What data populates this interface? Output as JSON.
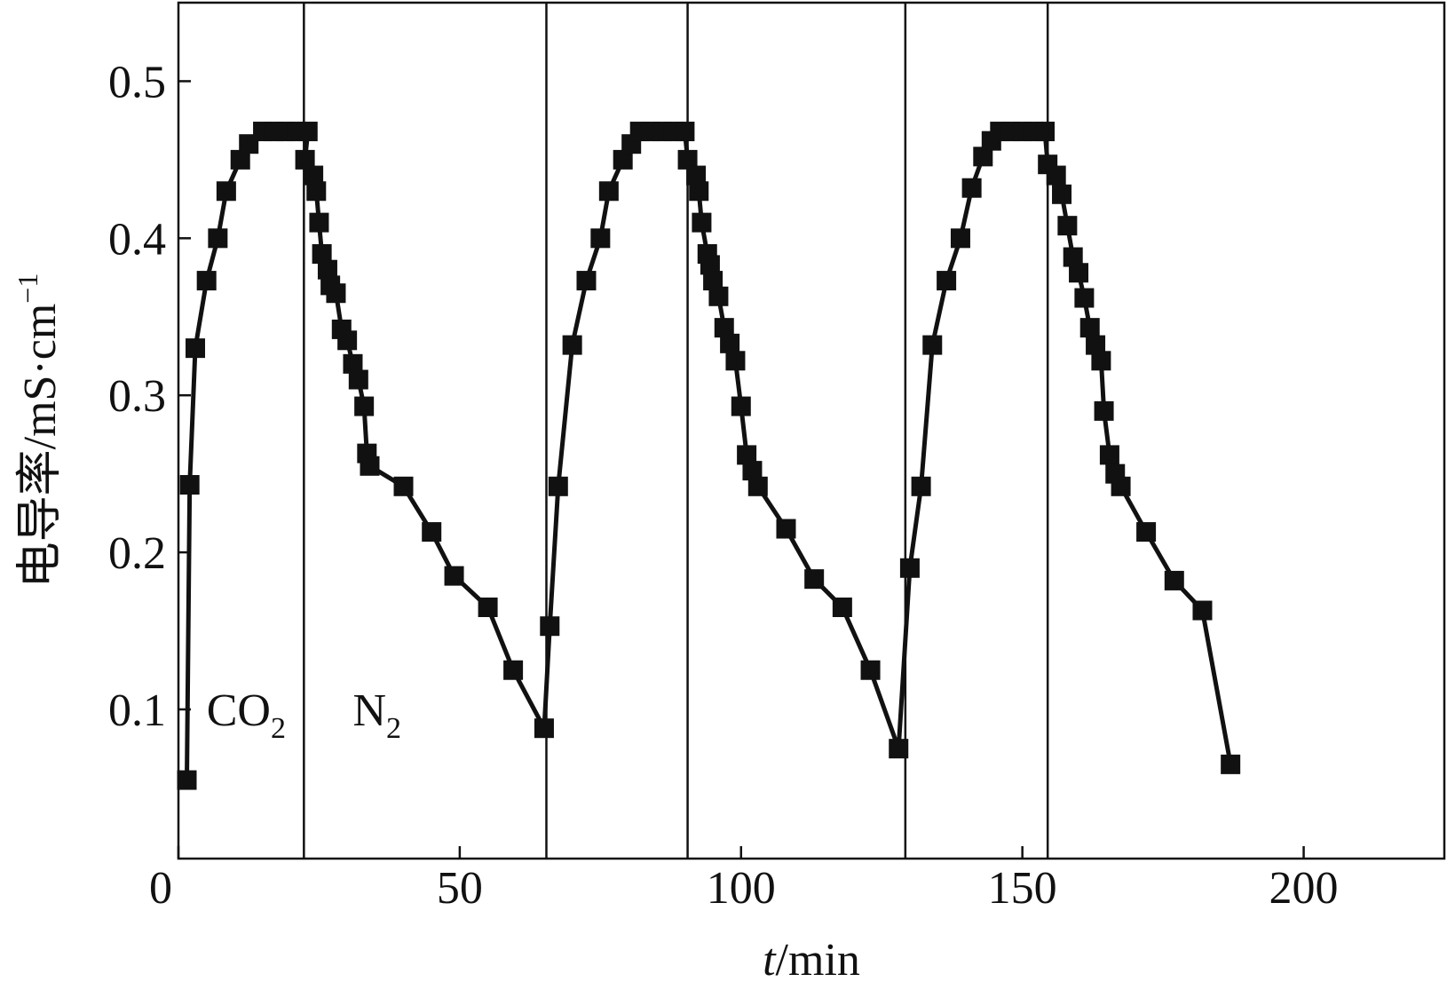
{
  "chart_data": {
    "type": "line",
    "x_label": {
      "main": "t",
      "rest": "/min"
    },
    "y_label": {
      "main": "电导率/mS·cm",
      "sup": "−1"
    },
    "annotations": [
      {
        "text": "CO",
        "sub": "2",
        "x": 5,
        "y": 0.1
      },
      {
        "text": "N",
        "sub": "2",
        "x": 31,
        "y": 0.1
      }
    ],
    "vlines": [
      22.3,
      65.4,
      90.5,
      129.2,
      154.5
    ],
    "color": "#111111",
    "xlim": [
      0,
      225
    ],
    "ylim": [
      0.005,
      0.55
    ],
    "xticks": [
      0,
      50,
      100,
      150,
      200
    ],
    "yticks": [
      0.1,
      0.2,
      0.3,
      0.4,
      0.5
    ],
    "x": [
      1.5,
      2,
      3,
      5,
      7,
      8.5,
      11,
      12.5,
      15,
      17,
      19,
      21,
      23,
      22.5,
      24,
      24.5,
      25,
      25.5,
      26.5,
      27,
      28,
      29,
      30,
      31,
      32,
      33,
      33.5,
      34,
      40,
      45,
      49,
      55,
      59.5,
      65,
      66,
      67.5,
      70,
      72.5,
      75,
      76.5,
      79,
      80.5,
      82,
      84,
      86,
      88,
      90,
      90.5,
      92,
      92.5,
      93,
      94,
      94.5,
      95,
      96,
      97,
      98,
      99,
      100,
      101,
      102,
      103,
      108,
      113,
      118,
      123,
      128,
      130,
      132,
      134,
      136.5,
      139,
      141,
      143,
      144.5,
      146,
      148,
      150,
      152,
      154,
      154.5,
      156,
      157,
      158,
      159,
      160,
      161,
      162,
      163,
      164,
      164.5,
      165.5,
      166.5,
      167.5,
      172,
      177,
      182,
      187
    ],
    "values": [
      0.055,
      0.243,
      0.33,
      0.373,
      0.4,
      0.43,
      0.45,
      0.46,
      0.468,
      0.468,
      0.468,
      0.468,
      0.468,
      0.45,
      0.44,
      0.43,
      0.41,
      0.39,
      0.38,
      0.37,
      0.365,
      0.342,
      0.335,
      0.32,
      0.31,
      0.293,
      0.263,
      0.255,
      0.242,
      0.213,
      0.185,
      0.165,
      0.125,
      0.088,
      0.153,
      0.242,
      0.332,
      0.373,
      0.4,
      0.43,
      0.45,
      0.46,
      0.468,
      0.468,
      0.468,
      0.468,
      0.468,
      0.45,
      0.44,
      0.43,
      0.41,
      0.39,
      0.383,
      0.373,
      0.363,
      0.343,
      0.333,
      0.322,
      0.293,
      0.262,
      0.252,
      0.242,
      0.215,
      0.183,
      0.165,
      0.125,
      0.075,
      0.19,
      0.242,
      0.332,
      0.373,
      0.4,
      0.432,
      0.452,
      0.462,
      0.468,
      0.468,
      0.468,
      0.468,
      0.468,
      0.447,
      0.44,
      0.428,
      0.408,
      0.388,
      0.378,
      0.362,
      0.343,
      0.332,
      0.322,
      0.29,
      0.262,
      0.25,
      0.242,
      0.213,
      0.182,
      0.163,
      0.065
    ]
  }
}
